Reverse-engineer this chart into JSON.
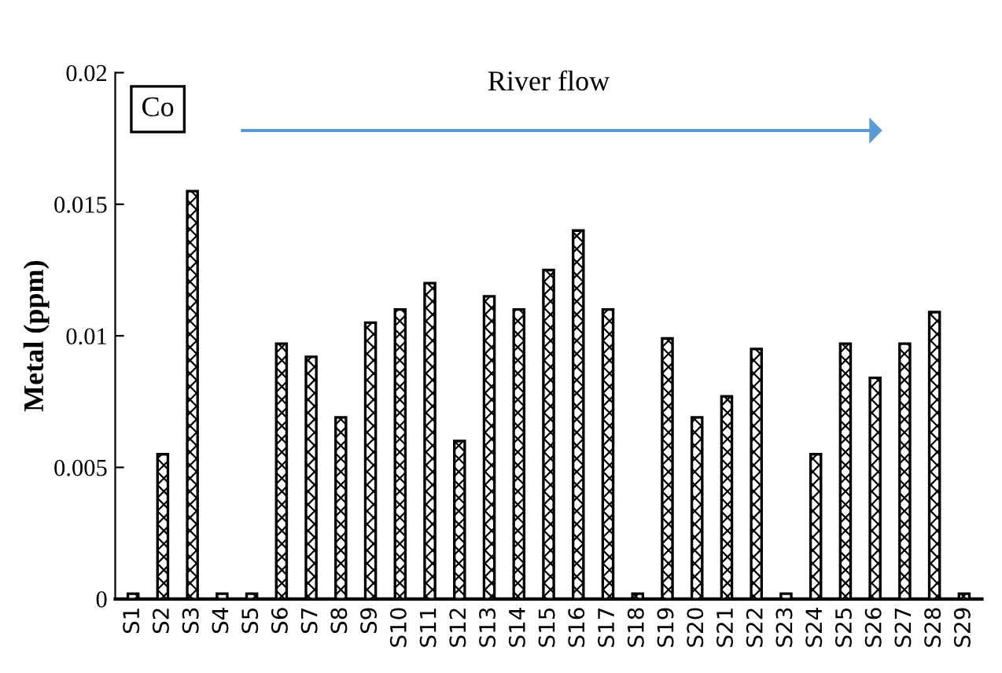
{
  "chart_data": {
    "type": "bar",
    "ylabel": "Metal (ppm)",
    "categories": [
      "S1",
      "S2",
      "S3",
      "S4",
      "S5",
      "S6",
      "S7",
      "S8",
      "S9",
      "S10",
      "S11",
      "S12",
      "S13",
      "S14",
      "S15",
      "S16",
      "S17",
      "S18",
      "S19",
      "S20",
      "S21",
      "S22",
      "S23",
      "S24",
      "S25",
      "S26",
      "S27",
      "S28",
      "S29"
    ],
    "values": [
      0.0002,
      0.0055,
      0.0155,
      0.0002,
      0.0002,
      0.0097,
      0.0092,
      0.0069,
      0.0105,
      0.011,
      0.012,
      0.006,
      0.0115,
      0.011,
      0.0125,
      0.014,
      0.011,
      0.0002,
      0.0099,
      0.0069,
      0.0077,
      0.0095,
      0.0002,
      0.0055,
      0.0097,
      0.0084,
      0.0097,
      0.0109,
      0.0002
    ],
    "color": "#000000",
    "ylim": [
      0,
      0.02
    ],
    "yticks": [
      0,
      0.005,
      0.01,
      0.015,
      0.02
    ],
    "grid": false,
    "legend": false,
    "annotations": [
      "Co",
      "River flow"
    ]
  }
}
